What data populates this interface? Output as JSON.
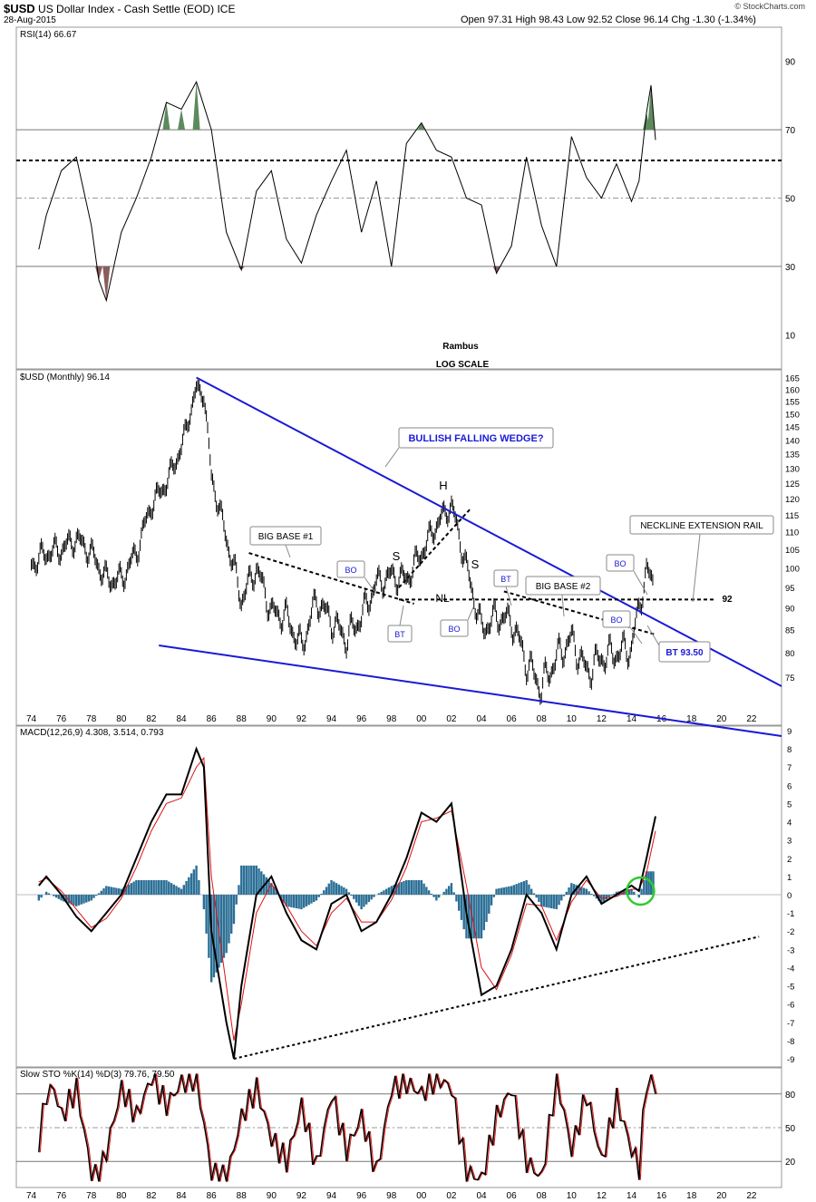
{
  "header": {
    "symbol": "$USD",
    "name": "US Dollar Index - Cash Settle (EOD)",
    "exchange": "ICE",
    "date": "28-Aug-2015",
    "ohlc": "Open 97.31  High 98.43  Low 92.52  Close 96.14  Chg -1.30 (-1.34%)",
    "brand": "© StockCharts.com"
  },
  "chart_data": [
    {
      "type": "line",
      "panel": "rsi",
      "legend": "RSI(14) 66.67",
      "yticks": [
        10,
        30,
        50,
        70,
        90
      ],
      "ylim": [
        0,
        100
      ],
      "levels": {
        "overbought": 70,
        "oversold": 30,
        "mid": 50,
        "dashed": 61
      },
      "x": [
        1974.5,
        1975,
        1976,
        1977,
        1978,
        1978.5,
        1979,
        1980,
        1981,
        1982,
        1983,
        1984,
        1985,
        1986,
        1987,
        1988,
        1989,
        1990,
        1991,
        1992,
        1993,
        1994,
        1995,
        1996,
        1997,
        1998,
        1999,
        2000,
        2001,
        2002,
        2003,
        2004,
        2005,
        2006,
        2007,
        2008,
        2009,
        2010,
        2011,
        2012,
        2013,
        2014,
        2014.5,
        2015,
        2015.3,
        2015.6
      ],
      "values": [
        35,
        45,
        58,
        62,
        42,
        26,
        20,
        40,
        50,
        62,
        78,
        76,
        84,
        70,
        40,
        29,
        52,
        58,
        38,
        31,
        45,
        55,
        64,
        40,
        55,
        30,
        66,
        72,
        64,
        62,
        50,
        48,
        28,
        36,
        62,
        42,
        30,
        68,
        56,
        50,
        60,
        49,
        55,
        75,
        83,
        67
      ]
    },
    {
      "type": "line",
      "panel": "price",
      "legend": "$USD (Monthly) 96.14",
      "scale": "log",
      "ylim": [
        70,
        166
      ],
      "yticks": [
        75,
        80,
        85,
        90,
        95,
        100,
        105,
        110,
        115,
        120,
        125,
        130,
        135,
        140,
        145,
        150,
        155,
        160,
        165
      ],
      "xticks": [
        "74",
        "76",
        "78",
        "80",
        "82",
        "84",
        "86",
        "88",
        "90",
        "92",
        "94",
        "96",
        "98",
        "00",
        "02",
        "04",
        "06",
        "08",
        "10",
        "12",
        "14",
        "16",
        "18",
        "20",
        "22"
      ],
      "xlim": [
        1973,
        2024
      ],
      "x": [
        1974,
        1975,
        1976,
        1977,
        1978,
        1979,
        1980,
        1981,
        1982,
        1983,
        1984,
        1985,
        1985.5,
        1986,
        1987,
        1988,
        1989,
        1990,
        1991,
        1992,
        1993,
        1994,
        1995,
        1996,
        1997,
        1998,
        1999,
        2000,
        2001,
        2002,
        2003,
        2004,
        2005,
        2006,
        2007,
        2008,
        2009,
        2010,
        2011,
        2012,
        2013,
        2014,
        2015,
        2015.5
      ],
      "values": [
        101,
        104,
        105,
        108,
        104,
        97,
        97,
        104,
        118,
        125,
        137,
        160,
        158,
        127,
        108,
        92,
        100,
        89,
        88,
        81,
        92,
        87,
        83,
        88,
        96,
        98,
        97,
        104,
        112,
        118,
        100,
        85,
        88,
        87,
        78,
        73,
        79,
        83,
        76,
        79,
        80,
        81,
        99,
        96
      ],
      "annotations": [
        "RSI(14) 66.67",
        "Rambus",
        "LOG SCALE",
        "BULLISH FALLING WEDGE?",
        "H",
        "S",
        "S",
        "NL",
        "BIG BASE #1",
        "BIG BASE #2",
        "BO",
        "BO",
        "BO",
        "BO",
        "BT",
        "BT",
        "BT 93.50",
        "NECKLINE EXTENSION RAIL",
        "92"
      ],
      "lines": {
        "wedge_top": [
          [
            1985,
            165
          ],
          [
            2024,
            80
          ]
        ],
        "wedge_bottom": [
          [
            1982.5,
            83
          ],
          [
            2024,
            68
          ]
        ],
        "neckline": [
          [
            1999,
            92
          ],
          [
            2019,
            92
          ]
        ]
      }
    },
    {
      "type": "line",
      "panel": "macd",
      "legend": "MACD(12,26,9) 4.308, 3.514, 0.793",
      "ylim": [
        -9,
        9
      ],
      "yticks": [
        -9,
        -8,
        -7,
        -6,
        -5,
        -4,
        -3,
        -2,
        -1,
        0,
        1,
        2,
        3,
        4,
        5,
        6,
        7,
        8,
        9
      ],
      "x": [
        1974.5,
        1975,
        1976,
        1977,
        1978,
        1979,
        1980,
        1981,
        1982,
        1983,
        1984,
        1985,
        1985.5,
        1986,
        1987,
        1987.5,
        1988,
        1989,
        1990,
        1991,
        1992,
        1993,
        1994,
        1995,
        1996,
        1997,
        1998,
        1999,
        2000,
        2001,
        2002,
        2003,
        2004,
        2005,
        2006,
        2007,
        2008,
        2009,
        2010,
        2011,
        2012,
        2013,
        2014,
        2014.5,
        2015,
        2015.6
      ],
      "values": [
        0.5,
        1,
        0,
        -1.2,
        -2,
        -1,
        0,
        2,
        4,
        5.5,
        5.5,
        8,
        7,
        -2,
        -7,
        -9,
        -5,
        0,
        1,
        -1,
        -2.5,
        -3,
        -0.5,
        0,
        -2,
        -1.5,
        0,
        2,
        4.5,
        4,
        5,
        -1,
        -5.5,
        -5,
        -3,
        0,
        -1,
        -3,
        0,
        1,
        -0.5,
        0,
        0.5,
        0.2,
        2,
        4.3
      ],
      "signal": [
        0.7,
        0.9,
        0.2,
        -0.8,
        -1.8,
        -1.3,
        -0.2,
        1.5,
        3.5,
        5,
        5.3,
        7,
        7.5,
        1,
        -5,
        -8,
        -6,
        -1,
        0.6,
        -0.6,
        -2,
        -2.8,
        -1,
        -0.2,
        -1.5,
        -1.5,
        -0.3,
        1.5,
        4,
        4.2,
        4.6,
        0.5,
        -4,
        -5.2,
        -3.3,
        -0.5,
        -0.6,
        -2.5,
        -0.4,
        0.8,
        -0.2,
        -0.1,
        0.3,
        0.3,
        1.2,
        3.5
      ]
    },
    {
      "type": "line",
      "panel": "stochastic",
      "legend": "Slow STO %K(14) %D(3) 79.76, 79.50",
      "ylim": [
        0,
        100
      ],
      "yticks": [
        20,
        50,
        80
      ],
      "x": [
        1974.5,
        1975,
        1975.5,
        1976,
        1977,
        1978,
        1978.5,
        1979,
        1980,
        1981,
        1982,
        1983,
        1984,
        1985,
        1986,
        1987,
        1988,
        1989,
        1990,
        1991,
        1992,
        1993,
        1994,
        1995,
        1996,
        1997,
        1998,
        1999,
        2000,
        2001,
        2002,
        2003,
        2004,
        2005,
        2006,
        2007,
        2008,
        2009,
        2010,
        2011,
        2012,
        2013,
        2014,
        2014.5,
        2015,
        2015.6
      ],
      "values": [
        40,
        80,
        85,
        60,
        85,
        10,
        4,
        30,
        85,
        60,
        95,
        70,
        90,
        95,
        10,
        4,
        60,
        85,
        40,
        20,
        70,
        15,
        80,
        30,
        60,
        10,
        85,
        90,
        80,
        95,
        85,
        10,
        4,
        60,
        85,
        20,
        5,
        95,
        30,
        80,
        20,
        75,
        30,
        15,
        92,
        80
      ]
    }
  ],
  "xaxis_bottom": [
    "74",
    "76",
    "78",
    "80",
    "82",
    "84",
    "86",
    "88",
    "90",
    "92",
    "94",
    "96",
    "98",
    "00",
    "02",
    "04",
    "06",
    "08",
    "10",
    "12",
    "14",
    "16",
    "18",
    "20",
    "22"
  ]
}
